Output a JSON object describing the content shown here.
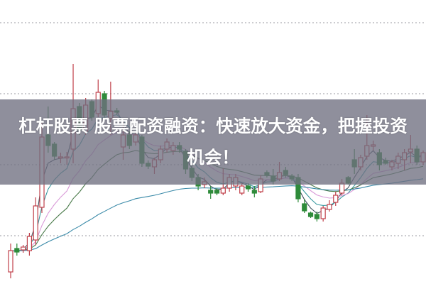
{
  "title": {
    "line1": "杠杆股票 股票配资融资：快速放大资金，把握投资",
    "line2": "机会！"
  },
  "chart_data": {
    "type": "candlestick",
    "title": "杠杆股票 股票配资融资：快速放大资金，把握投资机会！",
    "xlabel": "",
    "ylabel": "",
    "ylim": [
      0,
      100
    ],
    "grid": true,
    "grid_style": "dotted horizontal",
    "up_color": "#c0404a",
    "down_color": "#2e8b3a",
    "ma_colors": [
      "#40505e",
      "#3a9aa0",
      "#d99ad8",
      "#4a7a4a",
      "#3a8aa8"
    ],
    "candles_ohlc": [
      [
        4.25,
        11.75,
        14.25,
        2
      ],
      [
        12.5,
        11.25,
        14.25,
        10
      ],
      [
        12,
        13,
        13.75,
        11
      ],
      [
        11.75,
        16.75,
        18,
        10
      ],
      [
        15.5,
        27.5,
        30.5,
        13.75
      ],
      [
        27,
        51.75,
        57.5,
        25
      ],
      [
        52.5,
        48.75,
        62.5,
        46.25
      ],
      [
        49.25,
        45,
        50,
        43.75
      ],
      [
        44.5,
        44.75,
        46.25,
        42.5
      ],
      [
        44.5,
        44.75,
        46.5,
        42
      ],
      [
        47.5,
        61.75,
        77.5,
        42.5
      ],
      [
        62.5,
        54.25,
        63.75,
        52.5
      ],
      [
        53.75,
        63,
        65.5,
        52.5
      ],
      [
        64.25,
        58.75,
        65,
        57.5
      ],
      [
        60,
        67.5,
        72,
        58.75
      ],
      [
        67,
        59.5,
        68,
        57.5
      ],
      [
        58.25,
        60.75,
        71.25,
        52.5
      ],
      [
        61,
        60.5,
        62,
        59.5
      ],
      [
        48.25,
        52.5,
        57.5,
        43.75
      ],
      [
        52.5,
        48.75,
        53.75,
        47.5
      ],
      [
        50,
        52.5,
        53.75,
        48.75
      ],
      [
        51.75,
        42.5,
        52.5,
        41.25
      ],
      [
        42.5,
        41.5,
        43.5,
        40.5
      ],
      [
        41.25,
        43.75,
        44.5,
        38.75
      ],
      [
        43.75,
        47.5,
        48.75,
        42.5
      ],
      [
        47.5,
        50,
        51.25,
        46.25
      ],
      [
        47,
        48.75,
        50,
        45.5
      ],
      [
        48.75,
        47.5,
        50,
        46.25
      ],
      [
        46.75,
        40.5,
        47.5,
        38.75
      ],
      [
        40.75,
        37.5,
        42,
        36.25
      ],
      [
        37.5,
        34.5,
        38.75,
        33
      ],
      [
        35,
        36,
        37.5,
        33.75
      ],
      [
        33,
        32,
        34.5,
        30
      ],
      [
        33,
        32,
        33.75,
        31.25
      ],
      [
        32,
        33.75,
        40.75,
        31.25
      ],
      [
        33.75,
        37.5,
        38.75,
        32.5
      ],
      [
        34.5,
        37.5,
        38.75,
        33
      ],
      [
        32,
        34.5,
        35.5,
        31.25
      ],
      [
        34.5,
        33.5,
        35.5,
        32.5
      ],
      [
        33,
        32,
        34.5,
        30.5
      ],
      [
        32.5,
        37,
        38.25,
        32
      ],
      [
        39.25,
        38.25,
        40,
        37.5
      ],
      [
        38,
        36.25,
        40.5,
        35
      ],
      [
        37,
        39.25,
        43,
        36.25
      ],
      [
        40,
        38.5,
        41.25,
        37.5
      ],
      [
        38,
        37,
        38.75,
        36.25
      ],
      [
        37.5,
        30,
        38.75,
        28.75
      ],
      [
        28.25,
        25.75,
        30,
        25
      ],
      [
        25,
        23.75,
        25.5,
        23.25
      ],
      [
        24.5,
        23,
        25.5,
        22
      ],
      [
        23,
        26.75,
        27.5,
        22
      ],
      [
        26.25,
        28,
        29.5,
        25.5
      ],
      [
        28.75,
        31.25,
        32.5,
        27.5
      ],
      [
        32,
        35.5,
        37,
        31.25
      ],
      [
        37.5,
        35.5,
        38,
        35
      ],
      [
        43.75,
        41.25,
        47.5,
        38.75
      ],
      [
        41.25,
        44.5,
        45.5,
        40
      ],
      [
        45,
        48.75,
        59.5,
        43.75
      ],
      [
        48.5,
        49,
        50.5,
        47
      ],
      [
        46.25,
        42,
        47.5,
        40
      ],
      [
        43.5,
        42.5,
        44.5,
        42
      ],
      [
        41.25,
        43,
        43.75,
        40
      ],
      [
        42.5,
        45,
        46.25,
        40.5
      ],
      [
        43.75,
        46.25,
        47.5,
        40
      ],
      [
        46.5,
        47.5,
        52.5,
        42.5
      ],
      [
        47.5,
        43,
        48.75,
        42
      ],
      [
        43,
        46.25,
        47,
        42
      ]
    ],
    "gridlines": [
      92,
      67,
      42,
      17
    ]
  }
}
